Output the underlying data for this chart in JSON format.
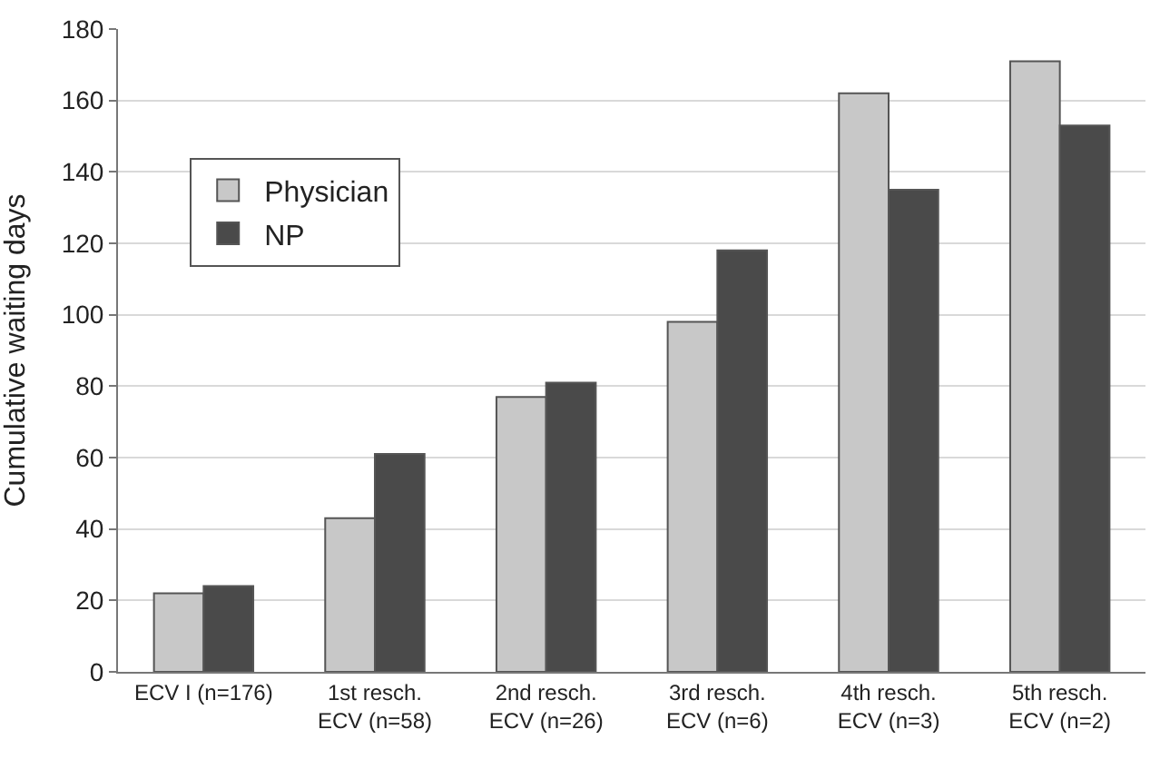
{
  "chart_data": {
    "type": "bar",
    "ylabel": "Cumulative waiting days",
    "categories": [
      "ECV I (n=176)",
      "1st resch.\nECV (n=58)",
      "2nd resch.\nECV (n=26)",
      "3rd resch.\nECV (n=6)",
      "4th resch.\nECV (n=3)",
      "5th resch.\nECV (n=2)"
    ],
    "series": [
      {
        "name": "Physician",
        "color": "#c8c8c8",
        "values": [
          22,
          43,
          77,
          98,
          162,
          171
        ]
      },
      {
        "name": "NP",
        "color": "#4a4a4a",
        "values": [
          24,
          61,
          81,
          118,
          135,
          153
        ]
      }
    ],
    "ylim": [
      0,
      180
    ],
    "yticks": [
      0,
      20,
      40,
      60,
      80,
      100,
      120,
      140,
      160,
      180
    ],
    "grid": "y",
    "legend": "top left"
  }
}
